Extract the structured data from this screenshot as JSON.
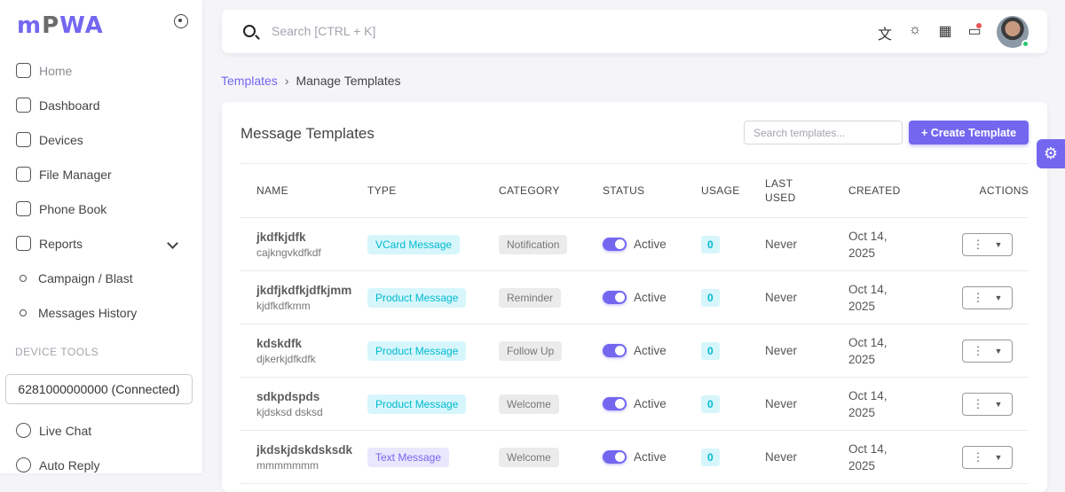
{
  "brand": {
    "logo_text": "mPWA",
    "accent": "#7367f0"
  },
  "sidebar": {
    "items": [
      {
        "label": "Home",
        "icon": "home-icon"
      },
      {
        "label": "Dashboard",
        "icon": "gauge-icon"
      },
      {
        "label": "Devices",
        "icon": "phone-icon"
      },
      {
        "label": "File Manager",
        "icon": "cloud-upload-icon"
      },
      {
        "label": "Phone Book",
        "icon": "book-icon"
      },
      {
        "label": "Reports",
        "icon": "report-icon"
      }
    ],
    "sub_items": [
      {
        "label": "Campaign / Blast"
      },
      {
        "label": "Messages History"
      }
    ],
    "section": "DEVICE TOOLS",
    "device": "6281000000000 (Connected)",
    "tools": [
      {
        "label": "Live Chat",
        "icon": "whatsapp-icon"
      },
      {
        "label": "Auto Reply",
        "icon": "chat-reply-icon"
      }
    ]
  },
  "topbar": {
    "search_placeholder": "Search [CTRL + K]"
  },
  "breadcrumb": {
    "parent": "Templates",
    "current": "Manage Templates"
  },
  "card": {
    "title": "Message Templates",
    "search_placeholder": "Search templates...",
    "create_label": "Create Template"
  },
  "table": {
    "headers": [
      "NAME",
      "TYPE",
      "CATEGORY",
      "STATUS",
      "USAGE",
      "LAST USED",
      "CREATED",
      "ACTIONS"
    ],
    "rows": [
      {
        "name": "jkdfkjdfk",
        "desc": "cajkngvkdfkdf",
        "type": "VCard Message",
        "type_color": "cyan",
        "category": "Notification",
        "status": "Active",
        "usage": "0",
        "last_used": "Never",
        "created": "Oct 14, 2025"
      },
      {
        "name": "jkdfjkdfkjdfkjmm",
        "desc": "kjdfkdfkmm",
        "type": "Product Message",
        "type_color": "cyan",
        "category": "Reminder",
        "status": "Active",
        "usage": "0",
        "last_used": "Never",
        "created": "Oct 14, 2025"
      },
      {
        "name": "kdskdfk",
        "desc": "djkerkjdfkdfk",
        "type": "Product Message",
        "type_color": "cyan",
        "category": "Follow Up",
        "status": "Active",
        "usage": "0",
        "last_used": "Never",
        "created": "Oct 14, 2025"
      },
      {
        "name": "sdkpdspds",
        "desc": "kjdsksd dsksd",
        "type": "Product Message",
        "type_color": "cyan",
        "category": "Welcome",
        "status": "Active",
        "usage": "0",
        "last_used": "Never",
        "created": "Oct 14, 2025"
      },
      {
        "name": "jkdskjdskdsksdk",
        "desc": "mmmmmmm",
        "type": "Text Message",
        "type_color": "purple",
        "category": "Welcome",
        "status": "Active",
        "usage": "0",
        "last_used": "Never",
        "created": "Oct 14, 2025"
      }
    ]
  }
}
